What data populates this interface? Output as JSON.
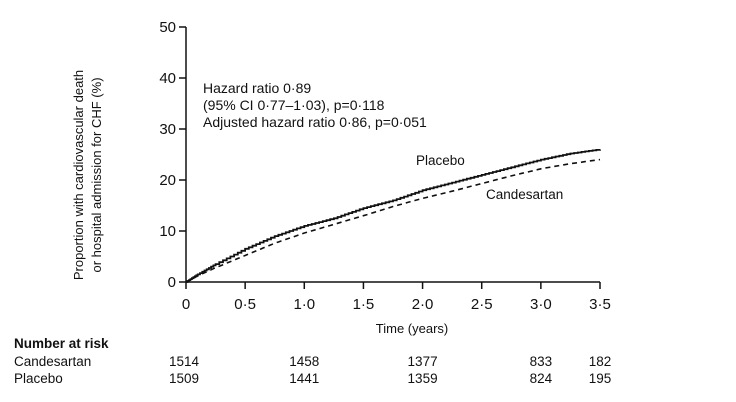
{
  "chart_data": {
    "type": "line",
    "xlabel": "Time (years)",
    "ylabel_lines": [
      "Proportion with cardiovascular death",
      "or hospital admission for CHF (%)"
    ],
    "xlim": [
      0,
      3.5
    ],
    "ylim": [
      0,
      50
    ],
    "x_ticks": [
      0,
      0.5,
      1.0,
      1.5,
      2.0,
      2.5,
      3.0,
      3.5
    ],
    "x_tick_labels": [
      "0",
      "0·5",
      "1·0",
      "1·5",
      "2·0",
      "2·5",
      "3·0",
      "3·5"
    ],
    "y_ticks": [
      0,
      10,
      20,
      30,
      40,
      50
    ],
    "y_tick_labels": [
      "0",
      "10",
      "20",
      "30",
      "40",
      "50"
    ],
    "grid": false,
    "annotations": [
      "Hazard ratio 0·89",
      "(95% CI 0·77–1·03), p=0·118",
      "Adjusted hazard ratio 0·86, p=0·051"
    ],
    "series": [
      {
        "name": "Placebo",
        "style": "solid",
        "x": [
          0,
          0.1,
          0.25,
          0.5,
          0.75,
          1.0,
          1.25,
          1.5,
          1.75,
          2.0,
          2.25,
          2.5,
          2.75,
          3.0,
          3.25,
          3.5
        ],
        "y": [
          0,
          1.5,
          3.5,
          6.5,
          9.0,
          11.0,
          12.5,
          14.5,
          16.0,
          18.0,
          19.5,
          21.0,
          22.5,
          24.0,
          25.2,
          26.0
        ]
      },
      {
        "name": "Candesartan",
        "style": "dashed",
        "x": [
          0,
          0.1,
          0.25,
          0.5,
          0.75,
          1.0,
          1.25,
          1.5,
          1.75,
          2.0,
          2.25,
          2.5,
          2.75,
          3.0,
          3.25,
          3.5
        ],
        "y": [
          0,
          1.2,
          2.8,
          5.2,
          7.6,
          9.6,
          11.3,
          13.0,
          14.8,
          16.4,
          17.8,
          19.3,
          20.8,
          22.2,
          23.2,
          24.0
        ]
      }
    ]
  },
  "risk_table": {
    "title": "Number at risk",
    "rows": [
      {
        "label": "Candesartan",
        "values": [
          "1514",
          "1458",
          "1377",
          "833",
          "182"
        ]
      },
      {
        "label": "Placebo",
        "values": [
          "1509",
          "1441",
          "1359",
          "824",
          "195"
        ]
      }
    ],
    "at_x": [
      0,
      1.0,
      2.0,
      3.0,
      3.5
    ]
  }
}
